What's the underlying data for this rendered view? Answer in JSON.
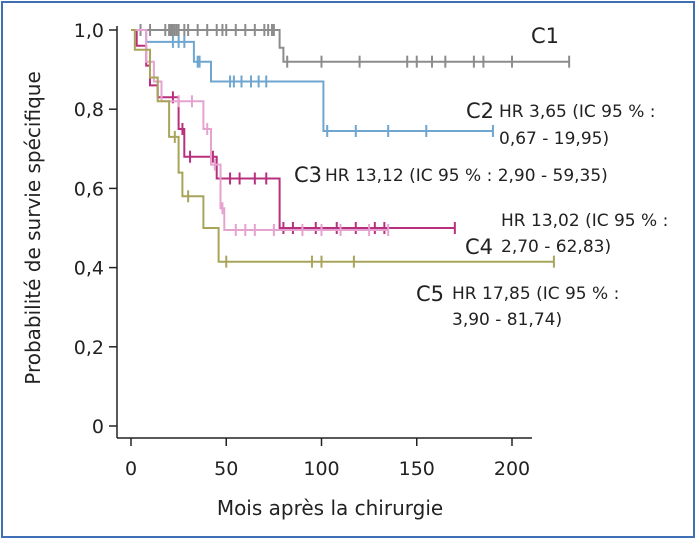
{
  "chart_data": {
    "type": "line",
    "step": true,
    "title": "",
    "xlabel": "Mois après la chirurgie",
    "ylabel": "Probabilité de survie spécifique",
    "xlim": [
      0,
      220
    ],
    "ylim": [
      0,
      1
    ],
    "x_ticks": [
      0,
      50,
      100,
      150,
      200
    ],
    "x_tick_labels": [
      "0",
      "50",
      "100",
      "150",
      "200"
    ],
    "y_ticks": [
      0,
      0.2,
      0.4,
      0.6,
      0.8,
      1.0
    ],
    "y_tick_labels": [
      "0",
      "0,2",
      "0,4",
      "0,6",
      "0,8",
      "1,0"
    ],
    "grid": false,
    "legend": "none",
    "series": [
      {
        "name": "C1",
        "color": "#8c8c8c",
        "points": [
          [
            0,
            1.0
          ],
          [
            78,
            1.0
          ],
          [
            78,
            0.955
          ],
          [
            80,
            0.955
          ],
          [
            80,
            0.92
          ],
          [
            230,
            0.92
          ]
        ],
        "censors": [
          5,
          10,
          18,
          20,
          21,
          22,
          23,
          24,
          25,
          28,
          30,
          35,
          40,
          45,
          48,
          50,
          55,
          60,
          65,
          70,
          72,
          74,
          75,
          82,
          100,
          120,
          145,
          150,
          158,
          165,
          180,
          185,
          200,
          230
        ],
        "label": "C1",
        "hr": ""
      },
      {
        "name": "C2",
        "color": "#6fa6cf",
        "points": [
          [
            0,
            1.0
          ],
          [
            8,
            1.0
          ],
          [
            8,
            0.97
          ],
          [
            33,
            0.97
          ],
          [
            33,
            0.92
          ],
          [
            42,
            0.92
          ],
          [
            42,
            0.87
          ],
          [
            101,
            0.87
          ],
          [
            101,
            0.745
          ],
          [
            190,
            0.745
          ]
        ],
        "censors": [
          22,
          25,
          28,
          35,
          36,
          52,
          54,
          58,
          63,
          67,
          71,
          103,
          118,
          135,
          155,
          190
        ],
        "label": "C2",
        "hr": [
          "HR 3,65 (IC 95 % :",
          "0,67 - 19,95)"
        ]
      },
      {
        "name": "C3",
        "color": "#b8307d",
        "points": [
          [
            0,
            1.0
          ],
          [
            3,
            1.0
          ],
          [
            3,
            0.96
          ],
          [
            8,
            0.96
          ],
          [
            8,
            0.91
          ],
          [
            10,
            0.91
          ],
          [
            10,
            0.86
          ],
          [
            14,
            0.86
          ],
          [
            14,
            0.83
          ],
          [
            25,
            0.83
          ],
          [
            25,
            0.75
          ],
          [
            28,
            0.75
          ],
          [
            28,
            0.68
          ],
          [
            45,
            0.68
          ],
          [
            45,
            0.625
          ],
          [
            78,
            0.625
          ],
          [
            78,
            0.5
          ],
          [
            170,
            0.5
          ]
        ],
        "censors": [
          22,
          27,
          31,
          43,
          47,
          52,
          57,
          65,
          71,
          80,
          85,
          97,
          108,
          118,
          128,
          133,
          170
        ],
        "label": "C3",
        "hr": [
          "HR 13,12 (IC 95 % : 2,90 - 59,35)"
        ]
      },
      {
        "name": "C4",
        "color": "#e6a3cf",
        "points": [
          [
            0,
            1.0
          ],
          [
            8,
            1.0
          ],
          [
            8,
            0.92
          ],
          [
            12,
            0.92
          ],
          [
            12,
            0.87
          ],
          [
            16,
            0.87
          ],
          [
            16,
            0.82
          ],
          [
            38,
            0.82
          ],
          [
            38,
            0.75
          ],
          [
            42,
            0.75
          ],
          [
            42,
            0.66
          ],
          [
            47,
            0.66
          ],
          [
            47,
            0.55
          ],
          [
            49,
            0.55
          ],
          [
            49,
            0.495
          ],
          [
            135,
            0.495
          ]
        ],
        "censors": [
          25,
          32,
          40,
          44,
          48,
          55,
          60,
          65,
          75,
          90,
          100,
          110,
          125,
          135
        ],
        "label": "C4",
        "hr": [
          "HR 13,02 (IC 95 % :",
          "2,70 - 62,83)"
        ]
      },
      {
        "name": "C5",
        "color": "#a8a55a",
        "points": [
          [
            0,
            1.0
          ],
          [
            2,
            1.0
          ],
          [
            2,
            0.95
          ],
          [
            10,
            0.95
          ],
          [
            10,
            0.88
          ],
          [
            14,
            0.88
          ],
          [
            14,
            0.82
          ],
          [
            20,
            0.82
          ],
          [
            20,
            0.73
          ],
          [
            25,
            0.73
          ],
          [
            25,
            0.64
          ],
          [
            27,
            0.64
          ],
          [
            27,
            0.58
          ],
          [
            38,
            0.58
          ],
          [
            38,
            0.5
          ],
          [
            46,
            0.5
          ],
          [
            46,
            0.415
          ],
          [
            222,
            0.415
          ]
        ],
        "censors": [
          23,
          30,
          50,
          95,
          100,
          117,
          222
        ],
        "label": "C5",
        "hr": [
          "HR 17,85 (IC 95 % :",
          "3,90 - 81,74)"
        ]
      }
    ]
  }
}
